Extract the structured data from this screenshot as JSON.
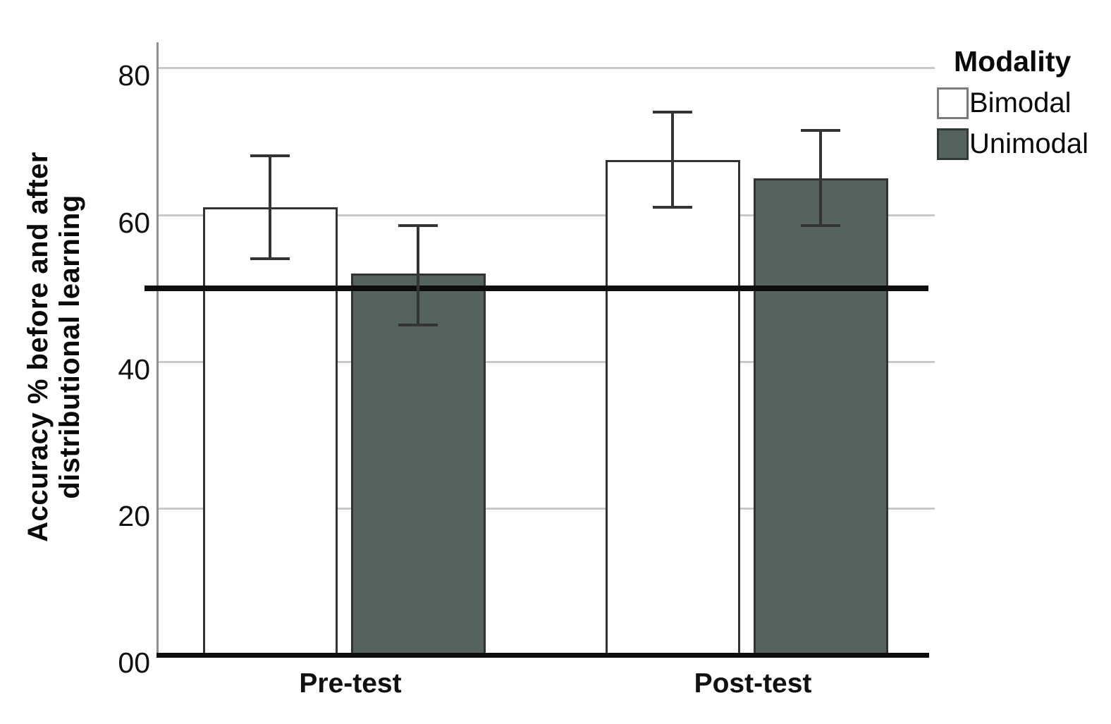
{
  "chart_data": {
    "type": "bar",
    "ylabel_line1": "Accuracy % before and after",
    "ylabel_line2": "distributional learning",
    "xlabel": "",
    "title": "",
    "categories": [
      "Pre-test",
      "Post-test"
    ],
    "series": [
      {
        "name": "Bimodal",
        "color": "#ffffff",
        "values": [
          61,
          67.5
        ],
        "errors_low": [
          54,
          61
        ],
        "errors_high": [
          68,
          74
        ]
      },
      {
        "name": "Unimodal",
        "color": "#54645c",
        "values": [
          52,
          65
        ],
        "errors_low": [
          45,
          58.5
        ],
        "errors_high": [
          58.5,
          71.5
        ]
      }
    ],
    "yticks": [
      {
        "value": 0,
        "label": "00"
      },
      {
        "value": 20,
        "label": "20"
      },
      {
        "value": 40,
        "label": "40"
      },
      {
        "value": 60,
        "label": "60"
      },
      {
        "value": 80,
        "label": "80"
      }
    ],
    "ylim": [
      0,
      83.5
    ],
    "reference_line_value": 50,
    "grid": true,
    "legend_title": "Modality",
    "legend_position": "top-right"
  }
}
